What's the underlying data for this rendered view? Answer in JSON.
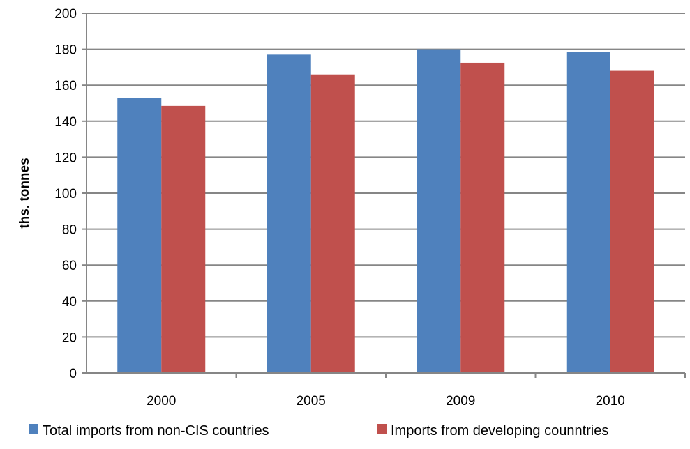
{
  "chart_data": {
    "type": "bar",
    "title": "",
    "xlabel": "",
    "ylabel": "ths. tonnes",
    "ylim": [
      0,
      200
    ],
    "ytick_step": 20,
    "categories": [
      "2000",
      "2005",
      "2009",
      "2010"
    ],
    "series": [
      {
        "name": "Total imports from non-CIS countries",
        "color": "#4F81BD",
        "values": [
          153,
          177,
          180,
          178.5
        ]
      },
      {
        "name": "Imports from developing counntries",
        "color": "#C0504D",
        "values": [
          148.5,
          166,
          172.5,
          168
        ]
      }
    ],
    "grid": true,
    "legend_position": "bottom"
  }
}
